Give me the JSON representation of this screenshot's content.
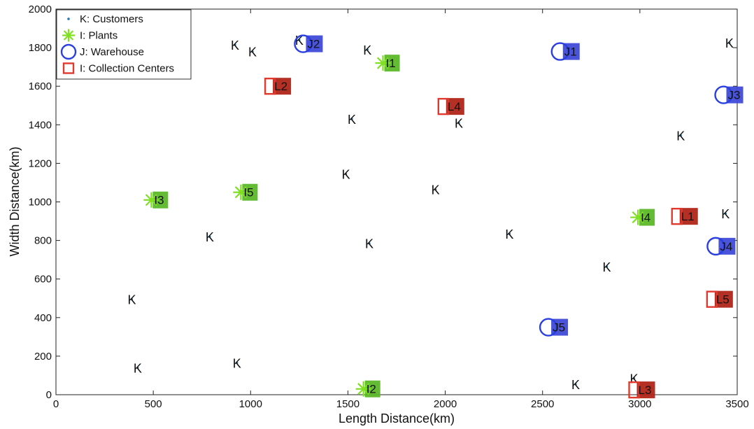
{
  "chart_data": {
    "type": "scatter",
    "xlabel": "Length Distance(km)",
    "ylabel": "Width Distance(km)",
    "xlim": [
      0,
      3500
    ],
    "ylim": [
      0,
      2000
    ],
    "xticks": [
      0,
      500,
      1000,
      1500,
      2000,
      2500,
      3000,
      3500
    ],
    "yticks": [
      0,
      200,
      400,
      600,
      800,
      1000,
      1200,
      1400,
      1600,
      1800,
      2000
    ],
    "legend_position": "top-left",
    "legend": [
      {
        "label": "K: Customers",
        "marker": "dot",
        "color": "#1f77b4"
      },
      {
        "label": "I: Plants",
        "marker": "asterisk",
        "color": "#7ee020"
      },
      {
        "label": "J: Warehouse",
        "marker": "circle",
        "color": "#2a3fe0"
      },
      {
        "label": "I: Collection Centers",
        "marker": "square",
        "color": "#e03a2f"
      }
    ],
    "customers": {
      "label": "K",
      "points": [
        [
          920,
          1815
        ],
        [
          1010,
          1780
        ],
        [
          1250,
          1840
        ],
        [
          1600,
          1790
        ],
        [
          1520,
          1430
        ],
        [
          1490,
          1145
        ],
        [
          1950,
          1065
        ],
        [
          2070,
          1410
        ],
        [
          3460,
          1825
        ],
        [
          3210,
          1345
        ],
        [
          3440,
          940
        ],
        [
          2330,
          835
        ],
        [
          790,
          820
        ],
        [
          1610,
          785
        ],
        [
          2830,
          665
        ],
        [
          390,
          495
        ],
        [
          420,
          140
        ],
        [
          930,
          165
        ],
        [
          2670,
          55
        ],
        [
          2970,
          85
        ]
      ]
    },
    "plants": {
      "color": "#7ee020",
      "points": [
        {
          "label": "I1",
          "x": 1680,
          "y": 1720
        },
        {
          "label": "I2",
          "x": 1580,
          "y": 30
        },
        {
          "label": "I3",
          "x": 490,
          "y": 1010
        },
        {
          "label": "I4",
          "x": 2990,
          "y": 920
        },
        {
          "label": "I5",
          "x": 950,
          "y": 1050
        }
      ]
    },
    "warehouses": {
      "color": "#2a3fe0",
      "points": [
        {
          "label": "J1",
          "x": 2590,
          "y": 1780
        },
        {
          "label": "J2",
          "x": 1270,
          "y": 1820
        },
        {
          "label": "J3",
          "x": 3430,
          "y": 1555
        },
        {
          "label": "J4",
          "x": 3390,
          "y": 770
        },
        {
          "label": "J5",
          "x": 2530,
          "y": 350
        }
      ]
    },
    "collection_centers": {
      "color": "#e03a2f",
      "points": [
        {
          "label": "L1",
          "x": 3190,
          "y": 925
        },
        {
          "label": "L2",
          "x": 1100,
          "y": 1600
        },
        {
          "label": "L3",
          "x": 2970,
          "y": 25
        },
        {
          "label": "L4",
          "x": 1990,
          "y": 1495
        },
        {
          "label": "L5",
          "x": 3370,
          "y": 495
        }
      ]
    }
  }
}
